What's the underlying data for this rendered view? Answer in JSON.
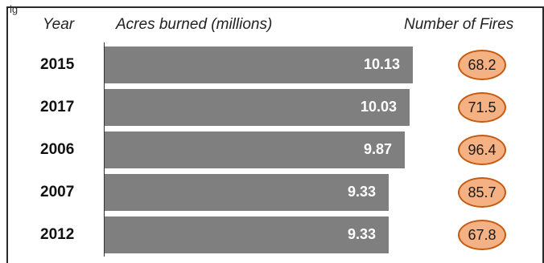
{
  "chart_data": {
    "type": "bar",
    "orientation": "horizontal",
    "headers": {
      "year": "Year",
      "acres": "Acres burned (millions)",
      "fires": "Number of Fires"
    },
    "categories": [
      "2015",
      "2017",
      "2006",
      "2007",
      "2012"
    ],
    "series": [
      {
        "name": "Acres burned (millions)",
        "values": [
          10.13,
          10.03,
          9.87,
          9.33,
          9.33
        ]
      },
      {
        "name": "Number of Fires",
        "values": [
          68.2,
          71.5,
          96.4,
          85.7,
          67.8
        ]
      }
    ],
    "xlim": [
      0,
      10.13
    ],
    "grid": false,
    "legend": "none"
  },
  "colors": {
    "bar": "#7f7f7f",
    "bubble_fill": "#f4b183",
    "bubble_border": "#c55a11",
    "bar_label": "#ffffff"
  },
  "top_strip_text": "lg"
}
